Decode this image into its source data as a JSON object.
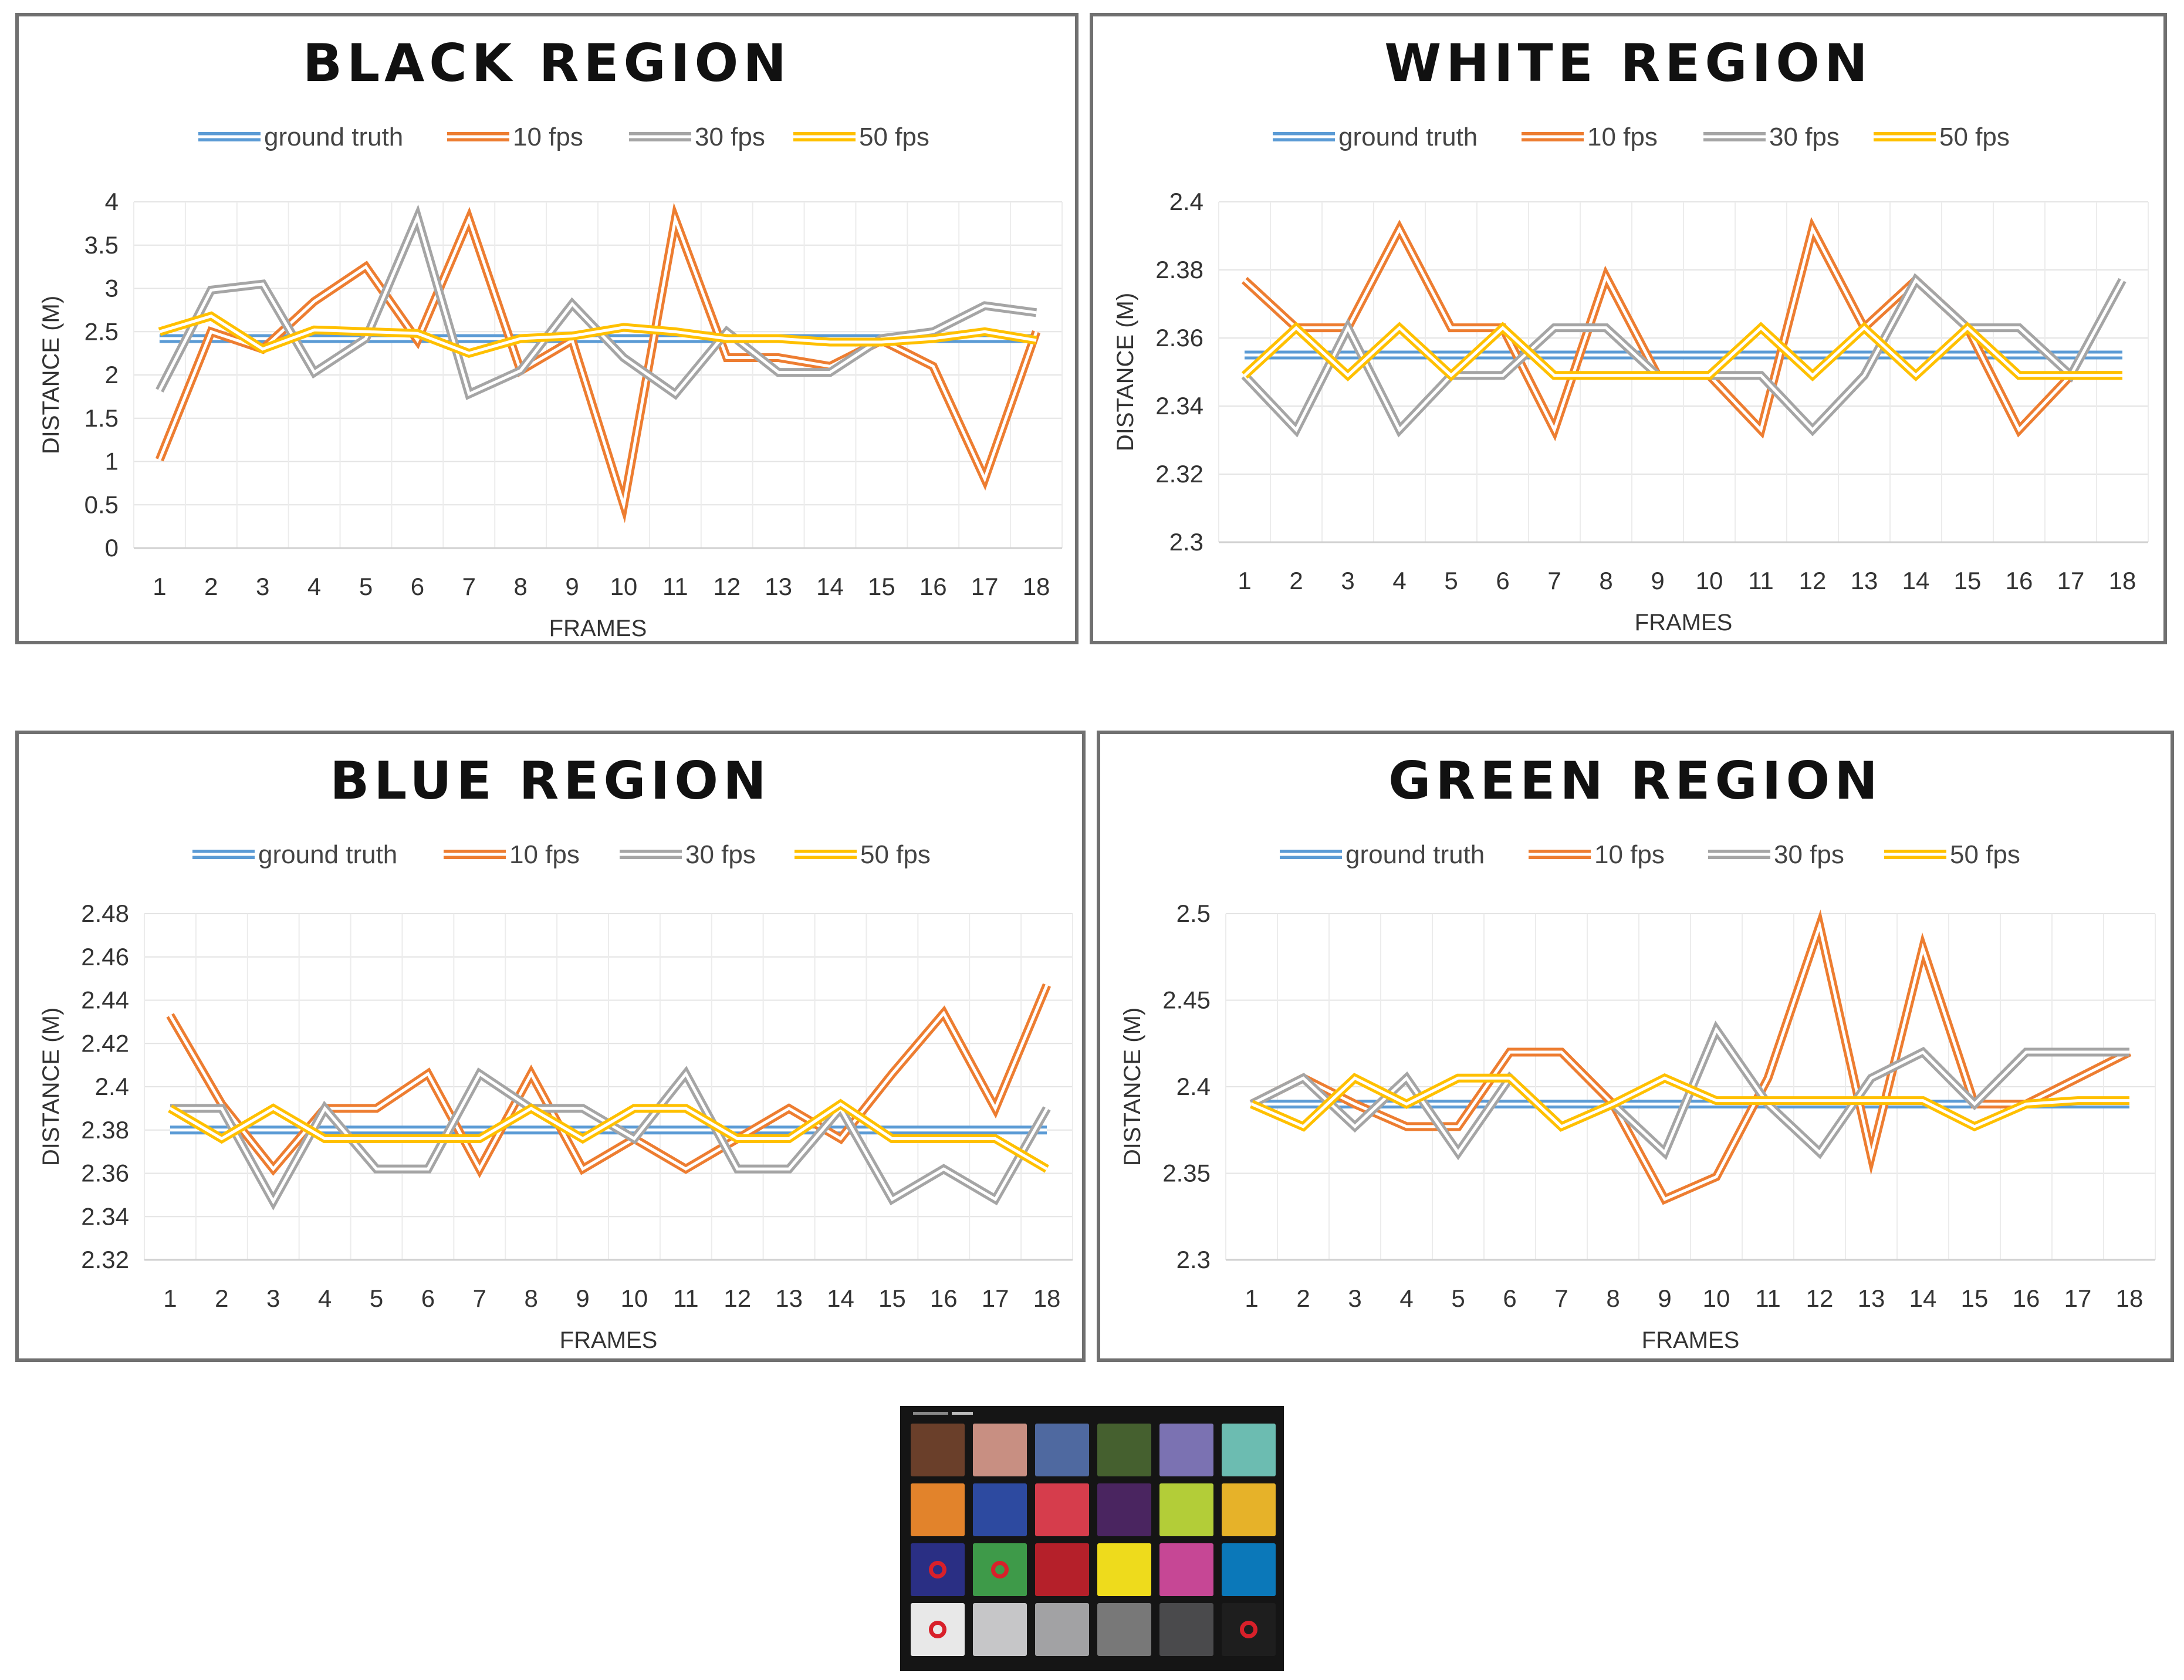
{
  "legend_colors": {
    "ground truth": "#5B9BD5",
    "10 fps": "#ED7D31",
    "30 fps": "#A5A5A5",
    "50 fps": "#FFC000"
  },
  "chart_data": [
    {
      "type": "line",
      "title": "BLACK REGION",
      "xlabel": "FRAMES",
      "ylabel": "DISTANCE (M)",
      "x": [
        1,
        2,
        3,
        4,
        5,
        6,
        7,
        8,
        9,
        10,
        11,
        12,
        13,
        14,
        15,
        16,
        17,
        18
      ],
      "ylim": [
        0,
        4
      ],
      "yticks": [
        "0",
        "0.5",
        "1",
        "1.5",
        "2",
        "2.5",
        "3",
        "3.5",
        "4"
      ],
      "legend_position": "top",
      "grid": true,
      "series": [
        {
          "name": "ground truth",
          "values": [
            2.42,
            2.42,
            2.42,
            2.42,
            2.42,
            2.42,
            2.42,
            2.42,
            2.42,
            2.42,
            2.42,
            2.42,
            2.42,
            2.42,
            2.42,
            2.42,
            2.42,
            2.42
          ]
        },
        {
          "name": "10 fps",
          "values": [
            1.02,
            2.5,
            2.3,
            2.85,
            3.25,
            2.4,
            3.8,
            2.05,
            2.4,
            0.5,
            3.8,
            2.2,
            2.2,
            2.1,
            2.4,
            2.1,
            0.8,
            2.5
          ]
        },
        {
          "name": "30 fps",
          "values": [
            1.82,
            2.98,
            3.05,
            2.03,
            2.42,
            3.82,
            1.78,
            2.05,
            2.82,
            2.2,
            1.78,
            2.5,
            2.03,
            2.03,
            2.42,
            2.5,
            2.8,
            2.72
          ]
        },
        {
          "name": "50 fps",
          "values": [
            2.5,
            2.68,
            2.3,
            2.52,
            2.5,
            2.48,
            2.25,
            2.42,
            2.45,
            2.55,
            2.5,
            2.42,
            2.42,
            2.38,
            2.38,
            2.42,
            2.5,
            2.4
          ]
        }
      ]
    },
    {
      "type": "line",
      "title": "WHITE REGION",
      "xlabel": "FRAMES",
      "ylabel": "DISTANCE (M)",
      "x": [
        1,
        2,
        3,
        4,
        5,
        6,
        7,
        8,
        9,
        10,
        11,
        12,
        13,
        14,
        15,
        16,
        17,
        18
      ],
      "ylim": [
        2.3,
        2.4
      ],
      "yticks": [
        "2.3",
        "2.32",
        "2.34",
        "2.36",
        "2.38",
        "2.4"
      ],
      "legend_position": "top",
      "grid": true,
      "series": [
        {
          "name": "ground truth",
          "values": [
            2.355,
            2.355,
            2.355,
            2.355,
            2.355,
            2.355,
            2.355,
            2.355,
            2.355,
            2.355,
            2.355,
            2.355,
            2.355,
            2.355,
            2.355,
            2.355,
            2.355,
            2.355
          ]
        },
        {
          "name": "10 fps",
          "values": [
            2.377,
            2.363,
            2.363,
            2.392,
            2.363,
            2.363,
            2.333,
            2.378,
            2.349,
            2.349,
            2.333,
            2.392,
            2.363,
            2.377,
            2.363,
            2.333,
            2.349,
            2.349
          ]
        },
        {
          "name": "30 fps",
          "values": [
            2.349,
            2.333,
            2.363,
            2.333,
            2.349,
            2.349,
            2.363,
            2.363,
            2.349,
            2.349,
            2.349,
            2.333,
            2.349,
            2.377,
            2.363,
            2.363,
            2.349,
            2.377
          ]
        },
        {
          "name": "50 fps",
          "values": [
            2.349,
            2.363,
            2.349,
            2.363,
            2.349,
            2.363,
            2.349,
            2.349,
            2.349,
            2.349,
            2.363,
            2.349,
            2.363,
            2.349,
            2.363,
            2.349,
            2.349,
            2.349
          ]
        }
      ]
    },
    {
      "type": "line",
      "title": "BLUE REGION",
      "xlabel": "FRAMES",
      "ylabel": "DISTANCE (M)",
      "x": [
        1,
        2,
        3,
        4,
        5,
        6,
        7,
        8,
        9,
        10,
        11,
        12,
        13,
        14,
        15,
        16,
        17,
        18
      ],
      "ylim": [
        2.32,
        2.48
      ],
      "yticks": [
        "2.32",
        "2.34",
        "2.36",
        "2.38",
        "2.4",
        "2.42",
        "2.44",
        "2.46",
        "2.48"
      ],
      "legend_position": "top",
      "grid": true,
      "series": [
        {
          "name": "ground truth",
          "values": [
            2.38,
            2.38,
            2.38,
            2.38,
            2.38,
            2.38,
            2.38,
            2.38,
            2.38,
            2.38,
            2.38,
            2.38,
            2.38,
            2.38,
            2.38,
            2.38,
            2.38,
            2.38
          ]
        },
        {
          "name": "10 fps",
          "values": [
            2.433,
            2.392,
            2.362,
            2.39,
            2.39,
            2.406,
            2.362,
            2.406,
            2.362,
            2.376,
            2.362,
            2.376,
            2.39,
            2.376,
            2.406,
            2.434,
            2.39,
            2.447
          ]
        },
        {
          "name": "30 fps",
          "values": [
            2.39,
            2.39,
            2.347,
            2.39,
            2.362,
            2.362,
            2.406,
            2.39,
            2.39,
            2.376,
            2.406,
            2.362,
            2.362,
            2.39,
            2.348,
            2.362,
            2.348,
            2.39
          ]
        },
        {
          "name": "50 fps",
          "values": [
            2.39,
            2.376,
            2.39,
            2.376,
            2.376,
            2.376,
            2.376,
            2.39,
            2.376,
            2.39,
            2.39,
            2.376,
            2.376,
            2.392,
            2.376,
            2.376,
            2.376,
            2.362
          ]
        }
      ]
    },
    {
      "type": "line",
      "title": "GREEN REGION",
      "xlabel": "FRAMES",
      "ylabel": "DISTANCE (M)",
      "x": [
        1,
        2,
        3,
        4,
        5,
        6,
        7,
        8,
        9,
        10,
        11,
        12,
        13,
        14,
        15,
        16,
        17,
        18
      ],
      "ylim": [
        2.3,
        2.5
      ],
      "yticks": [
        "2.3",
        "2.35",
        "2.4",
        "2.45",
        "2.5"
      ],
      "legend_position": "top",
      "grid": true,
      "series": [
        {
          "name": "ground truth",
          "values": [
            2.39,
            2.39,
            2.39,
            2.39,
            2.39,
            2.39,
            2.39,
            2.39,
            2.39,
            2.39,
            2.39,
            2.39,
            2.39,
            2.39,
            2.39,
            2.39,
            2.39,
            2.39
          ]
        },
        {
          "name": "10 fps",
          "values": [
            2.39,
            2.405,
            2.39,
            2.377,
            2.377,
            2.42,
            2.42,
            2.39,
            2.335,
            2.348,
            2.405,
            2.493,
            2.36,
            2.48,
            2.39,
            2.39,
            2.405,
            2.42
          ]
        },
        {
          "name": "30 fps",
          "values": [
            2.39,
            2.405,
            2.377,
            2.405,
            2.362,
            2.405,
            2.377,
            2.39,
            2.362,
            2.433,
            2.39,
            2.362,
            2.405,
            2.42,
            2.39,
            2.42,
            2.42,
            2.42
          ]
        },
        {
          "name": "50 fps",
          "values": [
            2.39,
            2.377,
            2.405,
            2.39,
            2.405,
            2.405,
            2.377,
            2.39,
            2.405,
            2.392,
            2.392,
            2.392,
            2.392,
            2.392,
            2.377,
            2.39,
            2.392,
            2.392
          ]
        }
      ]
    }
  ],
  "color_checker": {
    "swatches": [
      "#6a3f2a",
      "#c88f82",
      "#4f69a0",
      "#45602f",
      "#7b72b2",
      "#6cbcb1",
      "#e2832b",
      "#2d4aa0",
      "#d63d4c",
      "#4a2560",
      "#b3cd38",
      "#e6b229",
      "#2a2f84",
      "#3e9a49",
      "#b5202a",
      "#eedb1c",
      "#c64795",
      "#0b78b9",
      "#e8e8e8",
      "#c6c6c8",
      "#a2a2a4",
      "#787878",
      "#4a4a4c",
      "#1e1e1e"
    ],
    "marked": [
      12,
      13,
      18,
      23
    ],
    "ring_color": "#d8202a"
  }
}
